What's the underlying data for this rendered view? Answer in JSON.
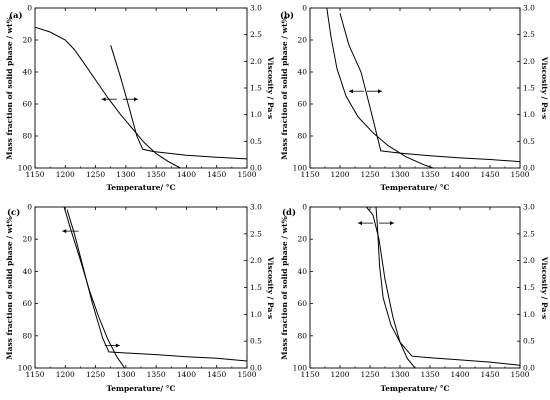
{
  "chart_data": [
    {
      "type": "line",
      "panel_label": "(a)",
      "xlabel": "Temperature/ °C",
      "ylabel_left": "Mass fraction of solid phase / wt%",
      "ylabel_right": "Viscosity / Pa·s",
      "xlim": [
        1150,
        1500
      ],
      "ylim_left": [
        100,
        0
      ],
      "ylim_right": [
        0,
        3.0
      ],
      "x_ticks": [
        "1150",
        "1200",
        "1250",
        "1300",
        "1350",
        "1400",
        "1450",
        "1500"
      ],
      "y_left_ticks": [
        "0",
        "20",
        "40",
        "60",
        "80",
        "100"
      ],
      "y_right_ticks": [
        "0.0",
        "0.5",
        "1.0",
        "1.5",
        "2.0",
        "2.5",
        "3.0"
      ],
      "grid": false,
      "series": [
        {
          "axis": "left",
          "x": [
            1150,
            1175,
            1200,
            1215,
            1230,
            1250,
            1270,
            1290,
            1310,
            1330,
            1350,
            1370,
            1390
          ],
          "values": [
            12,
            15,
            20,
            26,
            34,
            45,
            56,
            66,
            75,
            84,
            91,
            96,
            100
          ]
        },
        {
          "axis": "right",
          "x": [
            1275,
            1290,
            1305,
            1318,
            1328,
            1345,
            1400,
            1450,
            1500
          ],
          "values": [
            2.3,
            1.75,
            1.15,
            0.6,
            0.35,
            0.31,
            0.24,
            0.2,
            0.17
          ]
        }
      ],
      "arrows": [
        {
          "from_x": 1285,
          "to_x": 1260,
          "y_left": 57
        },
        {
          "from_x": 1295,
          "to_x": 1320,
          "y_left": 57
        }
      ]
    },
    {
      "type": "line",
      "panel_label": "(b)",
      "xlabel": "Temperature/ °C",
      "ylabel_left": "Mass fraction of solid phase / wt%",
      "ylabel_right": "Viscosity / Pa·s",
      "xlim": [
        1150,
        1500
      ],
      "ylim_left": [
        100,
        0
      ],
      "ylim_right": [
        0,
        3.0
      ],
      "x_ticks": [
        "1150",
        "1200",
        "1250",
        "1300",
        "1350",
        "1400",
        "1450",
        "1500"
      ],
      "y_left_ticks": [
        "0",
        "20",
        "40",
        "60",
        "80",
        "100"
      ],
      "y_right_ticks": [
        "0.0",
        "0.5",
        "1.0",
        "1.5",
        "2.0",
        "2.5",
        "3.0"
      ],
      "grid": false,
      "series": [
        {
          "axis": "left",
          "x": [
            1178,
            1185,
            1195,
            1210,
            1230,
            1255,
            1280,
            1310,
            1340,
            1355
          ],
          "values": [
            0,
            18,
            38,
            55,
            68,
            78,
            86,
            93,
            98,
            100
          ]
        },
        {
          "axis": "right",
          "x": [
            1200,
            1215,
            1235,
            1252,
            1268,
            1300,
            1350,
            1400,
            1450,
            1500
          ],
          "values": [
            2.9,
            2.3,
            1.8,
            1.05,
            0.32,
            0.28,
            0.23,
            0.19,
            0.16,
            0.12
          ]
        }
      ],
      "arrows": [
        {
          "from_x": 1240,
          "to_x": 1215,
          "y_left": 52
        },
        {
          "from_x": 1245,
          "to_x": 1270,
          "y_left": 52
        }
      ]
    },
    {
      "type": "line",
      "panel_label": "(c)",
      "xlabel": "Temperature/ °C",
      "ylabel_left": "Mass fraction of solid phase / wt%",
      "ylabel_right": "Viscosity / Pa·s",
      "xlim": [
        1150,
        1500
      ],
      "ylim_left": [
        100,
        0
      ],
      "ylim_right": [
        0,
        3.0
      ],
      "x_ticks": [
        "1150",
        "1200",
        "1250",
        "1300",
        "1350",
        "1400",
        "1450",
        "1500"
      ],
      "y_left_ticks": [
        "0",
        "20",
        "40",
        "60",
        "80",
        "100"
      ],
      "y_right_ticks": [
        "0.0",
        "0.5",
        "1.0",
        "1.5",
        "2.0",
        "2.5",
        "3.0"
      ],
      "grid": false,
      "series": [
        {
          "axis": "left",
          "x": [
            1198,
            1210,
            1225,
            1240,
            1255,
            1270,
            1285,
            1298
          ],
          "values": [
            0,
            15,
            33,
            52,
            68,
            82,
            93,
            100
          ]
        },
        {
          "axis": "right",
          "x": [
            1203,
            1215,
            1230,
            1245,
            1262,
            1272,
            1300,
            1350,
            1400,
            1450,
            1500
          ],
          "values": [
            2.95,
            2.5,
            1.85,
            1.2,
            0.55,
            0.3,
            0.28,
            0.25,
            0.21,
            0.18,
            0.13
          ]
        }
      ],
      "arrows": [
        {
          "from_x": 1222,
          "to_x": 1195,
          "y_left": 15
        },
        {
          "from_x": 1265,
          "to_x": 1290,
          "y_left": 86
        }
      ]
    },
    {
      "type": "line",
      "panel_label": "(d)",
      "xlabel": "Temperature/ °C",
      "ylabel_left": "Mass fraction of solid phase / wt%",
      "ylabel_right": "Viscosity / Pa·s",
      "xlim": [
        1150,
        1500
      ],
      "ylim_left": [
        100,
        0
      ],
      "ylim_right": [
        0,
        3.0
      ],
      "x_ticks": [
        "1150",
        "1200",
        "1250",
        "1300",
        "1350",
        "1400",
        "1450",
        "1500"
      ],
      "y_left_ticks": [
        "0",
        "20",
        "40",
        "60",
        "80",
        "100"
      ],
      "y_right_ticks": [
        "0.0",
        "0.5",
        "1.0",
        "1.5",
        "2.0",
        "2.5",
        "3.0"
      ],
      "grid": false,
      "series": [
        {
          "axis": "left",
          "x": [
            1244,
            1255,
            1265,
            1275,
            1288,
            1300,
            1312,
            1325
          ],
          "values": [
            0,
            5,
            20,
            45,
            68,
            84,
            94,
            100
          ]
        },
        {
          "axis": "right",
          "x": [
            1260,
            1262,
            1266,
            1272,
            1285,
            1300,
            1320,
            1350,
            1400,
            1450,
            1500
          ],
          "values": [
            3.0,
            2.7,
            1.9,
            1.3,
            0.8,
            0.48,
            0.22,
            0.19,
            0.15,
            0.11,
            0.05
          ]
        }
      ],
      "arrows": [
        {
          "from_x": 1255,
          "to_x": 1230,
          "y_left": 10
        },
        {
          "from_x": 1265,
          "to_x": 1290,
          "y_left": 10
        }
      ]
    }
  ]
}
